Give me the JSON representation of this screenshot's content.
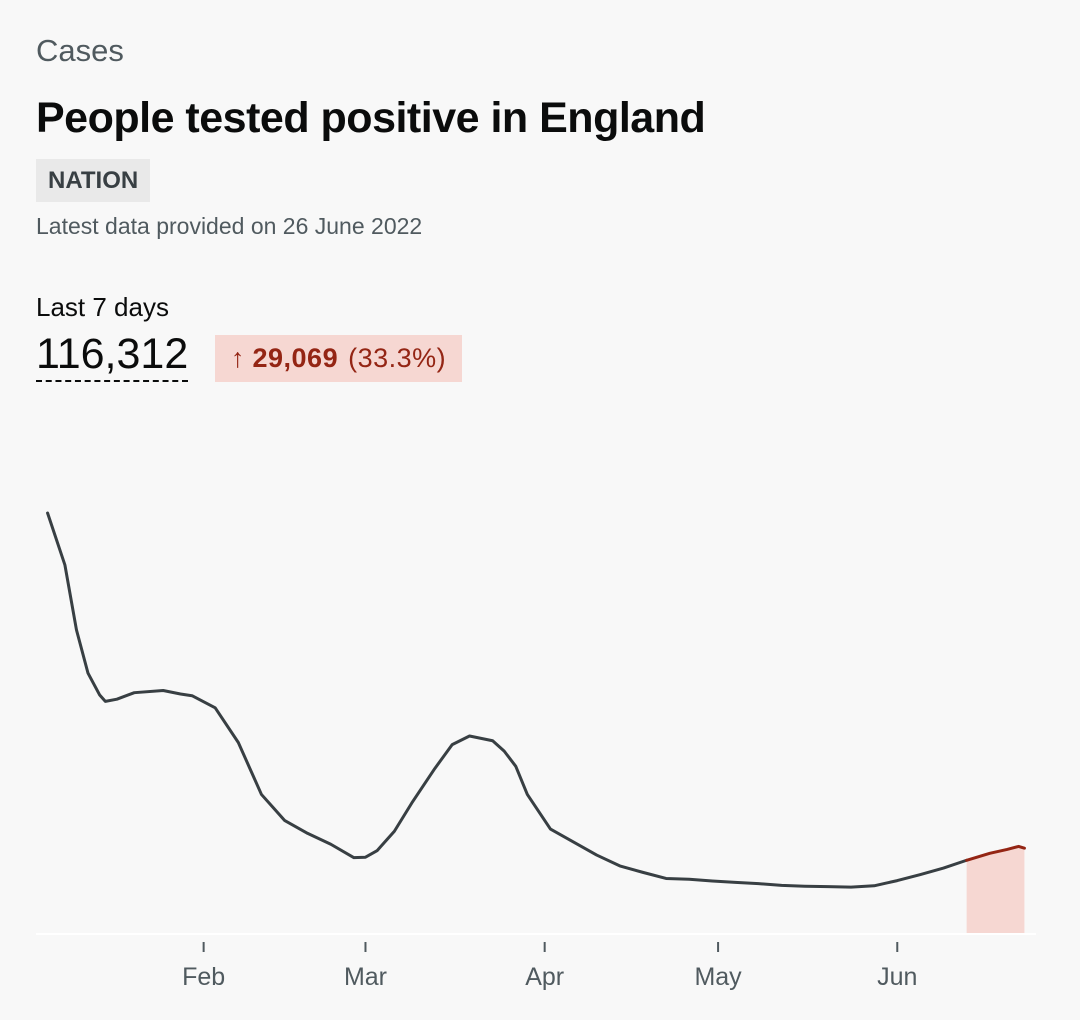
{
  "header": {
    "category": "Cases",
    "title": "People tested positive in England",
    "area_tag": "NATION",
    "updated": "Latest data provided on 26 June 2022"
  },
  "summary": {
    "period_label": "Last 7 days",
    "total": "116,312",
    "change_arrow": "↑",
    "change_value": "29,069",
    "change_percent": "(33.3%)"
  },
  "colors": {
    "line": "#383f43",
    "highlight_line": "#942514",
    "highlight_fill": "#f6d7d2",
    "axis": "#ffffff",
    "tick": "#505a5f"
  },
  "chart_data": {
    "type": "line",
    "title": "",
    "xlabel": "",
    "ylabel": "",
    "x_ticks": [
      {
        "label": "Feb",
        "day": 32
      },
      {
        "label": "Mar",
        "day": 60
      },
      {
        "label": "Apr",
        "day": 91
      },
      {
        "label": "May",
        "day": 121
      },
      {
        "label": "Jun",
        "day": 152
      }
    ],
    "series": [
      {
        "name": "",
        "x": [
          5,
          8,
          10,
          12,
          14,
          15,
          17,
          20,
          25,
          28,
          30,
          34,
          38,
          40,
          42,
          44,
          46,
          50,
          54,
          58,
          60,
          62,
          65,
          68,
          72,
          75,
          78,
          82,
          84,
          86,
          88,
          92,
          96,
          100,
          104,
          108,
          112,
          116,
          120,
          124,
          128,
          132,
          136,
          140,
          144,
          148,
          150,
          152,
          156,
          160,
          164
        ],
        "y": [
          97000,
          85000,
          70000,
          60000,
          55000,
          53500,
          54000,
          55500,
          56000,
          55200,
          54800,
          52000,
          44000,
          38000,
          32000,
          29000,
          26000,
          23000,
          20500,
          17400,
          17500,
          19000,
          23500,
          30000,
          38000,
          43500,
          45500,
          44400,
          42000,
          38500,
          32000,
          24000,
          21000,
          18000,
          15500,
          14000,
          12600,
          12400,
          12000,
          11700,
          11400,
          11000,
          10800,
          10700,
          10600,
          10900,
          11500,
          12100,
          13500,
          15000,
          16800
        ]
      }
    ],
    "highlight": {
      "label": "Last 7 days",
      "x": [
        164,
        166,
        168,
        171,
        173,
        174
      ],
      "y": [
        16800,
        17600,
        18400,
        19300,
        20000,
        19600
      ]
    },
    "x_range": [
      3,
      176
    ],
    "ylim": [
      0,
      100000
    ]
  }
}
